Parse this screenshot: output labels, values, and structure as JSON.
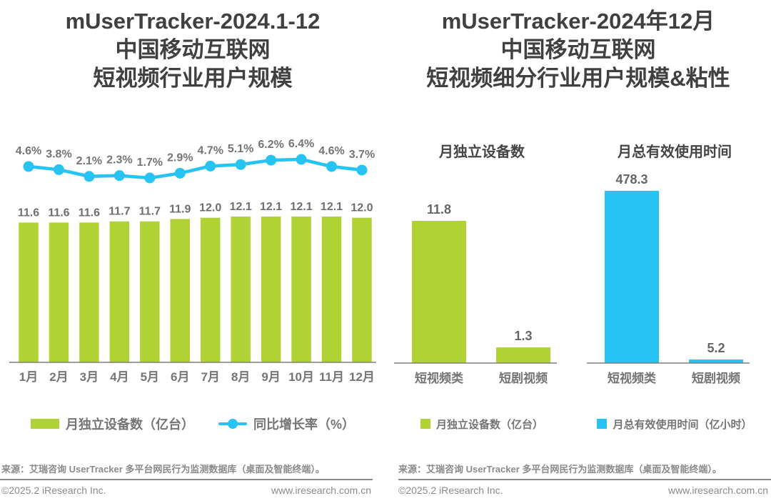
{
  "colors": {
    "green": "#B1D235",
    "cyan": "#27C4F3",
    "title_gray": "#404040",
    "label_gray": "#757575",
    "axis_gray": "#7F7F7F",
    "footer_gray": "#8A8A8A"
  },
  "left_panel": {
    "title_lines": [
      "mUserTracker-2024.1-12",
      "中国移动互联网",
      "短视频行业用户规模"
    ]
  },
  "right_panel": {
    "title_lines": [
      "mUserTracker-2024年12月",
      "中国移动互联网",
      "短视频细分行业用户规模&粘性"
    ]
  },
  "footer": {
    "source": "来源：艾瑞咨询 UserTracker 多平台网民行为监测数据库（桌面及智能终端）。",
    "copyright": "©2025.2 iResearch Inc.",
    "website": "www.iresearch.com.cn"
  },
  "chart_data": [
    {
      "type": "bar",
      "subtype": "bar+line combo",
      "title": "mUserTracker-2024.1-12 中国移动互联网 短视频行业用户规模",
      "categories": [
        "1月",
        "2月",
        "3月",
        "4月",
        "5月",
        "6月",
        "7月",
        "8月",
        "9月",
        "10月",
        "11月",
        "12月"
      ],
      "series": [
        {
          "name": "月独立设备数（亿台）",
          "type": "bar",
          "color": "#B1D235",
          "values": [
            11.6,
            11.6,
            11.6,
            11.7,
            11.7,
            11.9,
            12.0,
            12.1,
            12.1,
            12.1,
            12.1,
            12.0
          ],
          "value_labels": [
            "11.6",
            "11.6",
            "11.6",
            "11.7",
            "11.7",
            "11.9",
            "12.0",
            "12.1",
            "12.1",
            "12.1",
            "12.1",
            "12.0"
          ]
        },
        {
          "name": "同比增长率（%）",
          "type": "line",
          "color": "#27C4F3",
          "values": [
            4.6,
            3.8,
            2.1,
            2.3,
            1.7,
            2.9,
            4.7,
            5.1,
            6.2,
            6.4,
            4.6,
            3.7
          ],
          "value_labels": [
            "4.6%",
            "3.8%",
            "2.1%",
            "2.3%",
            "1.7%",
            "2.9%",
            "4.7%",
            "5.1%",
            "6.2%",
            "6.4%",
            "4.6%",
            "3.7%"
          ]
        }
      ],
      "y_axis_visible": false,
      "grid": false,
      "legend_position": "bottom"
    },
    {
      "type": "bar",
      "title": "月独立设备数",
      "categories": [
        "短视频类",
        "短剧视频"
      ],
      "values": [
        11.8,
        1.3
      ],
      "value_labels": [
        "11.8",
        "1.3"
      ],
      "unit": "亿台",
      "color": "#B1D235",
      "legend_label": "月独立设备数（亿台）",
      "y_axis_visible": false,
      "grid": false
    },
    {
      "type": "bar",
      "title": "月总有效使用时间",
      "categories": [
        "短视频类",
        "短剧视频"
      ],
      "values": [
        478.3,
        5.2
      ],
      "value_labels": [
        "478.3",
        "5.2"
      ],
      "unit": "亿小时",
      "color": "#27C4F3",
      "legend_label": "月总有效使用时间（亿小时）",
      "y_axis_visible": false,
      "grid": false
    }
  ]
}
